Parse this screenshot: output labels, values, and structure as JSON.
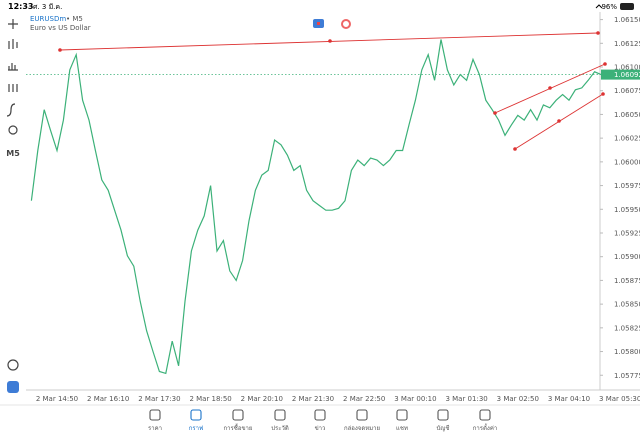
{
  "status_bar": {
    "time": "12:33",
    "date": "ศ. 3 มี.ค.",
    "battery": "96%"
  },
  "symbol": {
    "name": "EURUSDm",
    "timeframe": "• M5",
    "description": "Euro vs US Dollar"
  },
  "toolbar": {
    "timeframe": "M5"
  },
  "chart_data": {
    "type": "line",
    "color": "#3cb179",
    "categories": [
      null,
      null,
      null,
      null,
      "2 Mar 14:50",
      null,
      null,
      null,
      null,
      null,
      null,
      null,
      "2 Mar 16:10",
      null,
      null,
      null,
      null,
      null,
      null,
      null,
      "2 Mar 17:30",
      null,
      null,
      null,
      null,
      null,
      null,
      null,
      "2 Mar 18:50",
      null,
      null,
      null,
      null,
      null,
      null,
      null,
      "2 Mar 20:10",
      null,
      null,
      null,
      null,
      null,
      null,
      null,
      "2 Mar 21:30",
      null,
      null,
      null,
      null,
      null,
      null,
      null,
      "2 Mar 22:50",
      null,
      null,
      null,
      null,
      null,
      null,
      null,
      "3 Mar 00:10",
      null,
      null,
      null,
      null,
      null,
      null,
      null,
      "3 Mar 01:30",
      null,
      null,
      null,
      null,
      null,
      null,
      null,
      "3 Mar 02:50",
      null,
      null,
      null,
      null,
      null,
      null,
      null,
      "3 Mar 04:10",
      null,
      null,
      null,
      null,
      null,
      null,
      null,
      "3 Mar 05:30"
    ],
    "values": [
      1.05959,
      1.06012,
      1.06055,
      1.06033,
      1.06012,
      1.06044,
      1.06097,
      1.06113,
      1.06065,
      1.06044,
      1.06012,
      1.05981,
      1.0597,
      1.05949,
      1.05928,
      1.05901,
      1.0589,
      1.05853,
      1.05822,
      1.058,
      1.05779,
      1.05777,
      1.05811,
      1.05785,
      1.05853,
      1.05906,
      1.05928,
      1.05943,
      1.05975,
      1.05906,
      1.05917,
      1.05885,
      1.05875,
      1.05896,
      1.05938,
      1.0597,
      1.05986,
      1.05991,
      1.06023,
      1.06018,
      1.06007,
      1.05991,
      1.05996,
      1.0597,
      1.05959,
      1.05954,
      1.05949,
      1.05949,
      1.05951,
      1.05959,
      1.05991,
      1.06002,
      1.05996,
      1.06004,
      1.06002,
      1.05996,
      1.06002,
      1.06012,
      1.06012,
      1.06039,
      1.06065,
      1.06097,
      1.06113,
      1.06086,
      1.06129,
      1.06097,
      1.06081,
      1.06092,
      1.06086,
      1.06108,
      1.06092,
      1.06065,
      1.06055,
      1.06044,
      1.06028,
      1.06039,
      1.06049,
      1.06044,
      1.06055,
      1.06044,
      1.0606,
      1.06057,
      1.06065,
      1.06071,
      1.06065,
      1.06076,
      1.06078,
      1.06086,
      1.06095,
      1.06092,
      null,
      null,
      null
    ],
    "current_price": 1.06092,
    "ylim": [
      1.0577,
      1.06158
    ],
    "yticks": [
      {
        "value": 1.0615,
        "label": "1.06150"
      },
      1.06125,
      {
        "value": 1.061,
        "label": "1.06100"
      },
      1.06075,
      {
        "value": 1.0605,
        "label": "1.06050"
      },
      1.06025,
      {
        "value": 1.06,
        "label": "1.06000"
      },
      1.05975,
      {
        "value": 1.0595,
        "label": "1.05950"
      },
      1.05925,
      {
        "value": 1.059,
        "label": "1.05900"
      },
      1.05875,
      {
        "value": 1.0585,
        "label": "1.05850"
      },
      1.05825,
      {
        "value": 1.058,
        "label": "1.05800"
      },
      1.05775
    ]
  },
  "tabs": [
    {
      "label": "ราคา",
      "active": false
    },
    {
      "label": "กราฟ",
      "active": true
    },
    {
      "label": "การซื้อขาย",
      "active": false
    },
    {
      "label": "ประวัติ",
      "active": false
    },
    {
      "label": "ข่าว",
      "active": false
    },
    {
      "label": "กล่องจดหมาย",
      "active": false
    },
    {
      "label": "แชท",
      "active": false
    },
    {
      "label": "บัญชี",
      "active": false
    },
    {
      "label": "การตั้งค่า",
      "active": false
    }
  ]
}
